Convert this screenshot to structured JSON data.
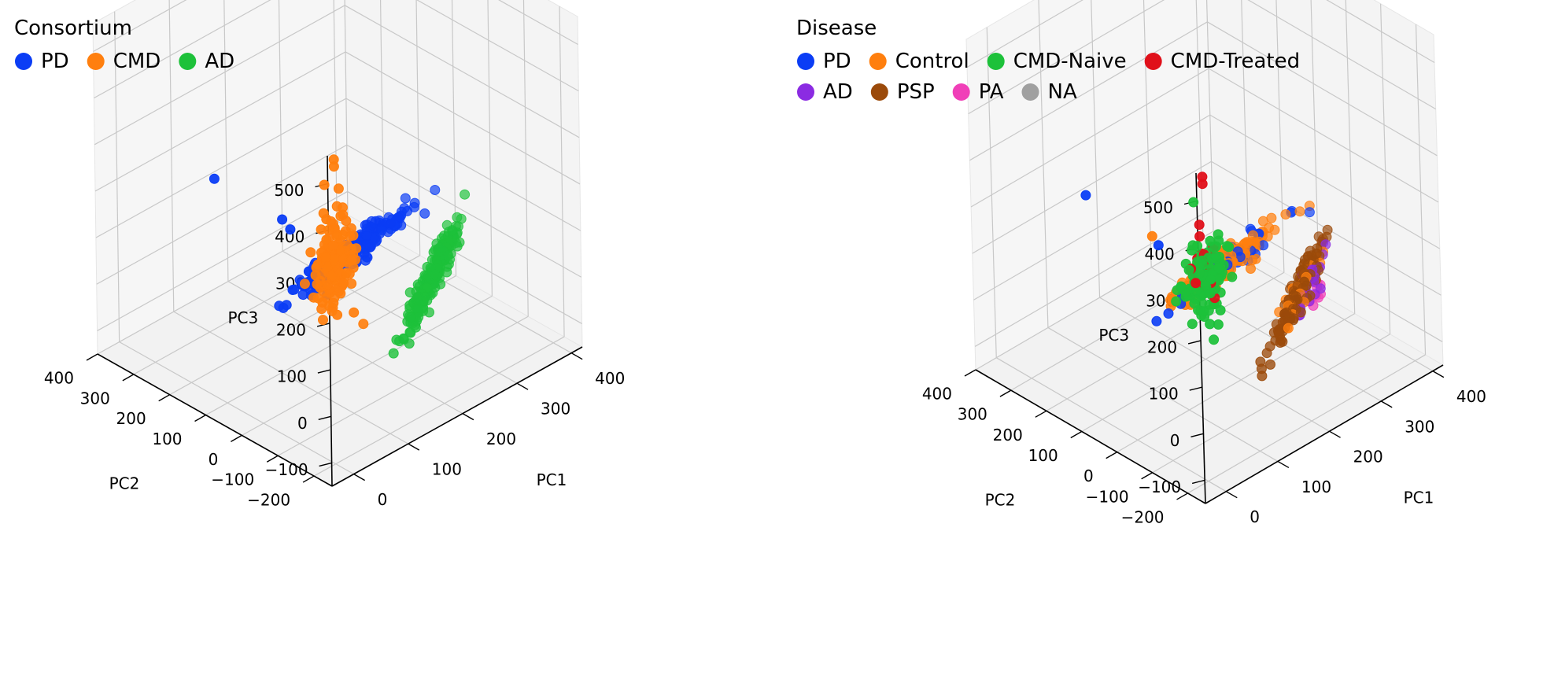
{
  "chart_data": [
    {
      "type": "scatter",
      "projection": "3d",
      "legend": {
        "title": "Consortium",
        "placement": "top-left",
        "entries": [
          {
            "name": "PD",
            "color": "#0b3df5"
          },
          {
            "name": "CMD",
            "color": "#ff7f0e"
          },
          {
            "name": "AD",
            "color": "#1dc13a"
          }
        ]
      },
      "axes": {
        "x": {
          "label": "PC1",
          "ticks": [
            "0",
            "100",
            "200",
            "300",
            "400"
          ]
        },
        "y": {
          "label": "PC2",
          "ticks": [
            "−200",
            "−100",
            "0",
            "100",
            "200",
            "300",
            "400"
          ]
        },
        "z": {
          "label": "PC3",
          "ticks": [
            "−100",
            "0",
            "100",
            "200",
            "300",
            "400",
            "500"
          ]
        }
      },
      "xlim": [
        -40,
        420
      ],
      "ylim": [
        -250,
        400
      ],
      "zlim": [
        -150,
        560
      ],
      "grid": true,
      "clusters": [
        {
          "name": "PD",
          "color": "#0b3df5",
          "center": [
            100,
            -100,
            200
          ],
          "axis": [
            120,
            20,
            5
          ],
          "spread": 12,
          "count": 230
        },
        {
          "name": "CMD",
          "color": "#ff7f0e",
          "center": [
            -20,
            -230,
            300
          ],
          "axis": [
            -5,
            -15,
            110
          ],
          "spread": 18,
          "count": 130
        },
        {
          "name": "AD",
          "color": "#1dc13a",
          "center": [
            230,
            -130,
            80
          ],
          "axis": [
            70,
            20,
            90
          ],
          "spread": 8,
          "count": 200
        }
      ],
      "outliers": [
        {
          "name": "PD",
          "x": 60,
          "y": 220,
          "z": 240
        },
        {
          "name": "PD",
          "x": 75,
          "y": 55,
          "z": 215
        },
        {
          "name": "PD",
          "x": 70,
          "y": 25,
          "z": 210
        },
        {
          "name": "CMD",
          "x": -25,
          "y": -245,
          "z": 540
        },
        {
          "name": "CMD",
          "x": -25,
          "y": -245,
          "z": 525
        },
        {
          "name": "CMD",
          "x": -30,
          "y": -225,
          "z": 480
        }
      ]
    },
    {
      "type": "scatter",
      "projection": "3d",
      "legend": {
        "title": "Disease",
        "placement": "top-left",
        "entries": [
          {
            "name": "PD",
            "color": "#0b3df5"
          },
          {
            "name": "Control",
            "color": "#ff7f0e"
          },
          {
            "name": "CMD-Naive",
            "color": "#1dc13a"
          },
          {
            "name": "CMD-Treated",
            "color": "#e0101a"
          },
          {
            "name": "AD",
            "color": "#8b2be2"
          },
          {
            "name": "PSP",
            "color": "#9b4a0a"
          },
          {
            "name": "PA",
            "color": "#f03fb8"
          },
          {
            "name": "NA",
            "color": "#a0a0a0"
          }
        ]
      },
      "axes": {
        "x": {
          "label": "PC1",
          "ticks": [
            "0",
            "100",
            "200",
            "300",
            "400"
          ]
        },
        "y": {
          "label": "PC2",
          "ticks": [
            "−200",
            "−100",
            "0",
            "100",
            "200",
            "300",
            "400"
          ]
        },
        "z": {
          "label": "PC3",
          "ticks": [
            "−100",
            "0",
            "100",
            "200",
            "300",
            "400",
            "500"
          ]
        }
      },
      "xlim": [
        -40,
        420
      ],
      "ylim": [
        -250,
        400
      ],
      "zlim": [
        -150,
        560
      ],
      "grid": true,
      "clusters": [
        {
          "name": "PD",
          "color": "#0b3df5",
          "center": [
            100,
            -100,
            200
          ],
          "axis": [
            120,
            20,
            5
          ],
          "spread": 12,
          "count": 60
        },
        {
          "name": "Control",
          "color": "#ff7f0e",
          "center": [
            100,
            -100,
            200
          ],
          "axis": [
            120,
            20,
            5
          ],
          "spread": 12,
          "count": 180
        },
        {
          "name": "CMD-Naive",
          "color": "#1dc13a",
          "center": [
            -20,
            -230,
            300
          ],
          "axis": [
            -5,
            -15,
            110
          ],
          "spread": 18,
          "count": 110
        },
        {
          "name": "CMD-Treated",
          "color": "#e0101a",
          "center": [
            -20,
            -230,
            330
          ],
          "axis": [
            -3,
            -10,
            60
          ],
          "spread": 14,
          "count": 22
        },
        {
          "name": "PSP",
          "color": "#9b4a0a",
          "center": [
            230,
            -130,
            80
          ],
          "axis": [
            70,
            20,
            90
          ],
          "spread": 8,
          "count": 110
        },
        {
          "name": "AD",
          "color": "#8b2be2",
          "center": [
            240,
            -135,
            70
          ],
          "axis": [
            50,
            15,
            70
          ],
          "spread": 8,
          "count": 40
        },
        {
          "name": "Control",
          "color": "#ff7f0e",
          "center": [
            230,
            -130,
            80
          ],
          "axis": [
            50,
            15,
            60
          ],
          "spread": 8,
          "count": 30
        },
        {
          "name": "PA",
          "color": "#f03fb8",
          "center": [
            255,
            -140,
            55
          ],
          "axis": [
            20,
            5,
            20
          ],
          "spread": 5,
          "count": 8
        }
      ],
      "outliers": [
        {
          "name": "PD",
          "x": 60,
          "y": 220,
          "z": 240
        },
        {
          "name": "Control",
          "x": 75,
          "y": 55,
          "z": 215
        },
        {
          "name": "PD",
          "x": 70,
          "y": 30,
          "z": 210
        },
        {
          "name": "CMD-Treated",
          "x": -25,
          "y": -245,
          "z": 540
        },
        {
          "name": "CMD-Treated",
          "x": -25,
          "y": -245,
          "z": 525
        },
        {
          "name": "CMD-Naive",
          "x": -30,
          "y": -225,
          "z": 480
        },
        {
          "name": "CMD-Treated",
          "x": -20,
          "y": -225,
          "z": 425
        },
        {
          "name": "CMD-Treated",
          "x": -20,
          "y": -225,
          "z": 400
        }
      ]
    }
  ]
}
